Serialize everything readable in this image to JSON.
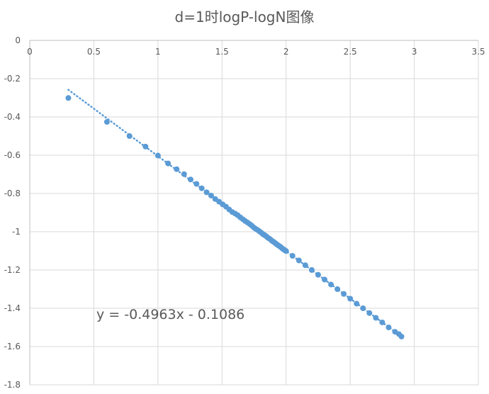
{
  "chart_data": {
    "type": "scatter",
    "title": "d=1时logP-logN图像",
    "xlabel": "",
    "ylabel": "",
    "xlim": [
      0,
      3.5
    ],
    "ylim": [
      -1.8,
      0
    ],
    "x_ticks": [
      "0",
      "0.5",
      "1",
      "1.5",
      "2",
      "2.5",
      "3",
      "3.5"
    ],
    "y_ticks": [
      "0",
      "-0.2",
      "-0.4",
      "-0.6",
      "-0.8",
      "-1",
      "-1.2",
      "-1.4",
      "-1.6",
      "-1.8"
    ],
    "grid": true,
    "x_axis_position": "top",
    "marker_color": "#5b9bd5",
    "trendline": {
      "type": "linear",
      "slope": -0.4963,
      "intercept": -0.1086,
      "x_range": [
        0.301,
        2.9
      ],
      "style": "dotted",
      "equation_label": "y = -0.4963x - 0.1086"
    },
    "series": [
      {
        "x": [
          0.301,
          0.602,
          0.778,
          0.903,
          1.0,
          1.079,
          1.146,
          1.204,
          1.255,
          1.301,
          1.342,
          1.38,
          1.415,
          1.447,
          1.477,
          1.505,
          1.531,
          1.556,
          1.58,
          1.602,
          1.623,
          1.643,
          1.663,
          1.681,
          1.699,
          1.716,
          1.732,
          1.748,
          1.763,
          1.778,
          1.792,
          1.806,
          1.82,
          1.833,
          1.845,
          1.857,
          1.869,
          1.881,
          1.892,
          1.903,
          1.914,
          1.924,
          1.934,
          1.944,
          1.954,
          1.964,
          1.973,
          1.982,
          1.991,
          2.0,
          2.05,
          2.1,
          2.15,
          2.2,
          2.25,
          2.3,
          2.35,
          2.4,
          2.45,
          2.5,
          2.55,
          2.6,
          2.65,
          2.7,
          2.75,
          2.8,
          2.85,
          2.88,
          2.9
        ],
        "y": [
          -0.301,
          -0.426,
          -0.5,
          -0.555,
          -0.602,
          -0.643,
          -0.673,
          -0.699,
          -0.727,
          -0.75,
          -0.773,
          -0.794,
          -0.811,
          -0.829,
          -0.843,
          -0.857,
          -0.869,
          -0.884,
          -0.897,
          -0.905,
          -0.914,
          -0.925,
          -0.935,
          -0.944,
          -0.952,
          -0.96,
          -0.968,
          -0.978,
          -0.985,
          -0.991,
          -0.998,
          -1.005,
          -1.013,
          -1.018,
          -1.024,
          -1.031,
          -1.036,
          -1.042,
          -1.049,
          -1.053,
          -1.059,
          -1.064,
          -1.069,
          -1.074,
          -1.078,
          -1.084,
          -1.089,
          -1.093,
          -1.097,
          -1.101,
          -1.126,
          -1.15,
          -1.175,
          -1.2,
          -1.225,
          -1.25,
          -1.276,
          -1.3,
          -1.325,
          -1.35,
          -1.376,
          -1.4,
          -1.425,
          -1.45,
          -1.474,
          -1.5,
          -1.523,
          -1.535,
          -1.548
        ]
      }
    ]
  }
}
